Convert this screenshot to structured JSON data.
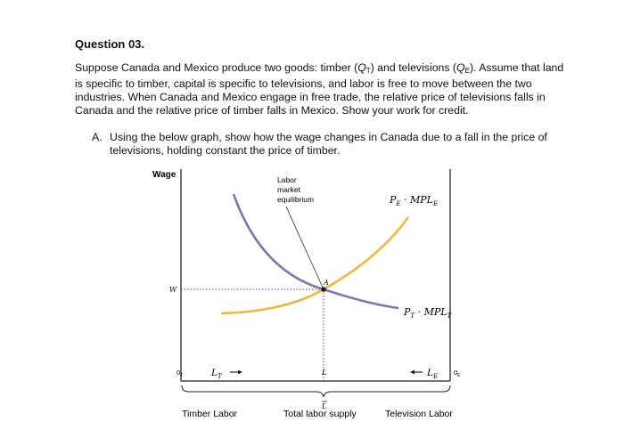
{
  "question": {
    "title": "Question 03.",
    "body_p1": "Suppose Canada and Mexico produce two goods: timber (",
    "qt_sym": "Q",
    "qt_sub": "T",
    "body_p2": ") and televisions (",
    "qe_sym": "Q",
    "qe_sub": "E",
    "body_p3": "). Assume that land is specific to timber, capital is specific to televisions, and labor is free to move between the two industries. When Canada and Mexico engage in free trade, the relative price of televisions falls in Canada and the relative price of timber falls in Mexico. Show your work for credit."
  },
  "part_a": {
    "letter": "A.",
    "text": "Using the below graph, show how the wage changes in Canada due to a fall in the price of televisions, holding constant the price of timber."
  },
  "graph": {
    "y_axis_label": "Wage",
    "wage_label": "W",
    "equilibrium_annotation_line1": "Labor",
    "equilibrium_annotation_line2": "market",
    "equilibrium_annotation_line3": "equilibrium",
    "point_label": "A",
    "curve_e_label": "PE · MPLE",
    "curve_e_p": "P",
    "curve_e_p_sub": "E",
    "curve_e_mpl": " · MPL",
    "curve_e_mpl_sub": "E",
    "curve_t_p": "P",
    "curve_t_p_sub": "T",
    "curve_t_mpl": " · MPL",
    "curve_t_mpl_sub": "T",
    "origin_left": "0",
    "origin_left_sub": "T",
    "origin_right": "0",
    "origin_right_sub": "E",
    "lt_sym": "L",
    "lt_sub": "T",
    "le_sym": "L",
    "le_sub": "E",
    "l_label": "L",
    "lbar_label": "L",
    "label_timber": "Timber Labor",
    "label_total": "Total labor supply",
    "label_tv": "Television Labor"
  },
  "colors": {
    "curve_purple": "#7b74b5",
    "curve_orange": "#f0b73d",
    "axis": "#222222",
    "dotted": "#555555"
  }
}
